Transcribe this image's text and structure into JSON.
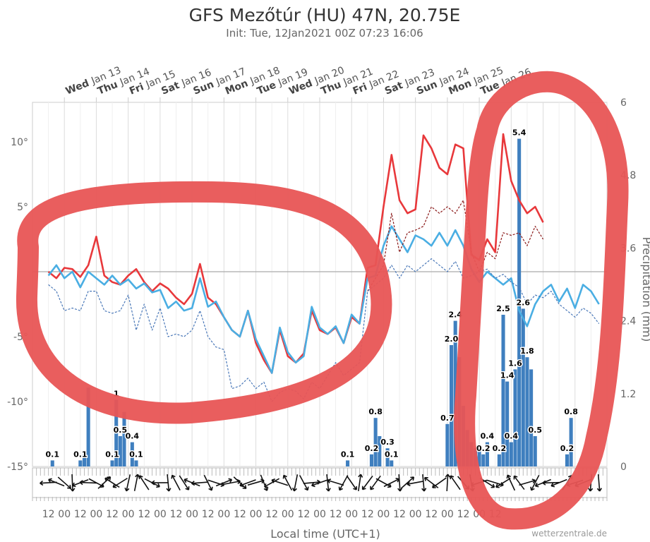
{
  "chart_data": {
    "type": "line+bar",
    "title": "GFS Mezőtúr (HU) 47N, 20.75E",
    "subtitle": "Init: Tue, 12Jan2021 00Z 07:23 16:06",
    "xlabel": "Local time (UTC+1)",
    "y_left": {
      "ticks": [
        "10°",
        "5°",
        "0°",
        "-5°",
        "-10°",
        "-15°"
      ],
      "range": [
        -15,
        13
      ]
    },
    "y_right": {
      "label": "Precipitation (mm)",
      "ticks": [
        "6",
        "4.8",
        "3.6",
        "2.4",
        "1.2",
        "0"
      ],
      "range": [
        0,
        6
      ]
    },
    "days": [
      {
        "name": "Wed",
        "date": "Jan 13"
      },
      {
        "name": "Thu",
        "date": "Jan 14"
      },
      {
        "name": "Fri",
        "date": "Jan 15"
      },
      {
        "name": "Sat",
        "date": "Jan 16"
      },
      {
        "name": "Sun",
        "date": "Jan 17"
      },
      {
        "name": "Mon",
        "date": "Jan 18"
      },
      {
        "name": "Tue",
        "date": "Jan 19"
      },
      {
        "name": "Wed",
        "date": "Jan 20"
      },
      {
        "name": "Thu",
        "date": "Jan 21"
      },
      {
        "name": "Fri",
        "date": "Jan 22"
      },
      {
        "name": "Sat",
        "date": "Jan 23"
      },
      {
        "name": "Sun",
        "date": "Jan 24"
      },
      {
        "name": "Mon",
        "date": "Jan 25"
      },
      {
        "name": "Tue",
        "date": "Jan 26"
      }
    ],
    "x_tick_labels": [
      "12",
      "00",
      "12",
      "00",
      "12",
      "00",
      "12",
      "00",
      "12",
      "00",
      "12",
      "00",
      "12",
      "00",
      "12",
      "00",
      "12",
      "00",
      "12",
      "00",
      "12",
      "00",
      "12",
      "00",
      "12",
      "00",
      "12",
      "00",
      "12"
    ],
    "x_hours": [
      0,
      372
    ],
    "series": [
      {
        "color": "#e8383b",
        "style": "solid",
        "points": [
          [
            0,
            0
          ],
          [
            6,
            -0.5
          ],
          [
            12,
            0.3
          ],
          [
            18,
            0.2
          ],
          [
            24,
            -0.4
          ],
          [
            30,
            0.5
          ],
          [
            36,
            2.7
          ],
          [
            42,
            -0.3
          ],
          [
            48,
            -0.8
          ],
          [
            54,
            -1.0
          ],
          [
            60,
            -0.3
          ],
          [
            66,
            0.2
          ],
          [
            72,
            -0.8
          ],
          [
            78,
            -1.5
          ],
          [
            84,
            -0.9
          ],
          [
            90,
            -1.3
          ],
          [
            96,
            -2.0
          ],
          [
            102,
            -2.5
          ],
          [
            108,
            -1.7
          ],
          [
            114,
            0.6
          ],
          [
            120,
            -2.0
          ],
          [
            126,
            -2.5
          ],
          [
            132,
            -3.5
          ],
          [
            138,
            -4.5
          ],
          [
            144,
            -5.0
          ],
          [
            150,
            -3.0
          ],
          [
            156,
            -5.5
          ],
          [
            162,
            -6.8
          ],
          [
            168,
            -7.8
          ],
          [
            174,
            -4.5
          ],
          [
            180,
            -6.5
          ],
          [
            186,
            -7.0
          ],
          [
            192,
            -6.3
          ],
          [
            198,
            -3.0
          ],
          [
            204,
            -4.5
          ],
          [
            210,
            -4.8
          ],
          [
            216,
            -4.3
          ],
          [
            222,
            -5.5
          ],
          [
            228,
            -3.5
          ],
          [
            234,
            -4.0
          ],
          [
            240,
            0.3
          ],
          [
            246,
            0.5
          ],
          [
            252,
            5.0
          ],
          [
            258,
            9.0
          ],
          [
            264,
            5.5
          ],
          [
            270,
            4.5
          ],
          [
            276,
            4.8
          ],
          [
            282,
            10.5
          ],
          [
            288,
            9.5
          ],
          [
            294,
            8.0
          ],
          [
            300,
            7.5
          ],
          [
            306,
            9.8
          ],
          [
            312,
            9.5
          ],
          [
            318,
            1.3
          ],
          [
            324,
            0.9
          ],
          [
            330,
            2.5
          ],
          [
            336,
            1.5
          ],
          [
            342,
            10.6
          ],
          [
            348,
            7.0
          ],
          [
            354,
            5.5
          ],
          [
            360,
            4.5
          ],
          [
            366,
            5.0
          ],
          [
            372,
            3.8
          ]
        ]
      },
      {
        "color": "#4aaee3",
        "style": "solid",
        "points": [
          [
            0,
            -0.3
          ],
          [
            6,
            0.5
          ],
          [
            12,
            -0.5
          ],
          [
            18,
            0.0
          ],
          [
            24,
            -1.2
          ],
          [
            30,
            0.0
          ],
          [
            36,
            -0.5
          ],
          [
            42,
            -1.0
          ],
          [
            48,
            -0.3
          ],
          [
            54,
            -1.0
          ],
          [
            60,
            -0.6
          ],
          [
            66,
            -1.3
          ],
          [
            72,
            -0.9
          ],
          [
            78,
            -1.6
          ],
          [
            84,
            -1.4
          ],
          [
            90,
            -2.8
          ],
          [
            96,
            -2.3
          ],
          [
            102,
            -3.0
          ],
          [
            108,
            -2.8
          ],
          [
            114,
            -0.5
          ],
          [
            120,
            -2.7
          ],
          [
            126,
            -2.3
          ],
          [
            132,
            -3.5
          ],
          [
            138,
            -4.5
          ],
          [
            144,
            -5.0
          ],
          [
            150,
            -3.0
          ],
          [
            156,
            -5.2
          ],
          [
            162,
            -6.5
          ],
          [
            168,
            -7.8
          ],
          [
            174,
            -4.3
          ],
          [
            180,
            -6.2
          ],
          [
            186,
            -7.0
          ],
          [
            192,
            -6.5
          ],
          [
            198,
            -2.7
          ],
          [
            204,
            -4.3
          ],
          [
            210,
            -4.8
          ],
          [
            216,
            -4.2
          ],
          [
            222,
            -5.5
          ],
          [
            228,
            -3.3
          ],
          [
            234,
            -4.0
          ],
          [
            240,
            -0.5
          ],
          [
            246,
            -0.3
          ],
          [
            252,
            2.0
          ],
          [
            258,
            3.5
          ],
          [
            264,
            2.5
          ],
          [
            270,
            1.5
          ],
          [
            276,
            2.8
          ],
          [
            282,
            2.5
          ],
          [
            288,
            2.0
          ],
          [
            294,
            3.0
          ],
          [
            300,
            2.0
          ],
          [
            306,
            3.2
          ],
          [
            312,
            2.0
          ],
          [
            318,
            0.2
          ],
          [
            324,
            -0.8
          ],
          [
            330,
            0.0
          ],
          [
            336,
            -0.5
          ],
          [
            342,
            -1.0
          ],
          [
            348,
            -0.5
          ],
          [
            354,
            -3.0
          ],
          [
            360,
            -4.2
          ],
          [
            366,
            -2.5
          ],
          [
            372,
            -1.5
          ],
          [
            378,
            -1.0
          ],
          [
            384,
            -2.3
          ],
          [
            390,
            -1.3
          ],
          [
            396,
            -2.8
          ],
          [
            402,
            -1.0
          ],
          [
            408,
            -1.5
          ],
          [
            414,
            -2.5
          ]
        ]
      },
      {
        "color": "#8b1a1a",
        "style": "dashed",
        "points": [
          [
            240,
            -1.5
          ],
          [
            246,
            -0.5
          ],
          [
            252,
            0.5
          ],
          [
            258,
            4.5
          ],
          [
            264,
            1.5
          ],
          [
            270,
            3.0
          ],
          [
            276,
            3.2
          ],
          [
            282,
            3.5
          ],
          [
            288,
            5.0
          ],
          [
            294,
            4.5
          ],
          [
            300,
            5.0
          ],
          [
            306,
            4.5
          ],
          [
            312,
            5.5
          ],
          [
            318,
            1.5
          ],
          [
            324,
            0.0
          ],
          [
            330,
            1.5
          ],
          [
            336,
            1.0
          ],
          [
            342,
            3.0
          ],
          [
            348,
            2.8
          ],
          [
            354,
            3.0
          ],
          [
            360,
            2.0
          ],
          [
            366,
            3.5
          ],
          [
            372,
            2.5
          ]
        ]
      },
      {
        "color": "#4a78b8",
        "style": "dashed",
        "points": [
          [
            0,
            -1.0
          ],
          [
            6,
            -1.5
          ],
          [
            12,
            -3.0
          ],
          [
            18,
            -2.8
          ],
          [
            24,
            -3.0
          ],
          [
            30,
            -1.5
          ],
          [
            36,
            -1.5
          ],
          [
            42,
            -3.0
          ],
          [
            48,
            -3.2
          ],
          [
            54,
            -3.0
          ],
          [
            60,
            -1.8
          ],
          [
            66,
            -4.5
          ],
          [
            72,
            -2.5
          ],
          [
            78,
            -4.5
          ],
          [
            84,
            -2.8
          ],
          [
            90,
            -5.0
          ],
          [
            96,
            -4.8
          ],
          [
            102,
            -5.0
          ],
          [
            108,
            -4.5
          ],
          [
            114,
            -3.0
          ],
          [
            120,
            -5.0
          ],
          [
            126,
            -5.8
          ],
          [
            132,
            -6.0
          ],
          [
            138,
            -9.0
          ],
          [
            144,
            -8.8
          ],
          [
            150,
            -8.2
          ],
          [
            156,
            -9.0
          ],
          [
            162,
            -8.5
          ],
          [
            168,
            -10.0
          ],
          [
            174,
            -9.3
          ],
          [
            180,
            -9.0
          ],
          [
            186,
            -9.2
          ],
          [
            192,
            -9.8
          ],
          [
            198,
            -8.5
          ],
          [
            204,
            -9.0
          ],
          [
            210,
            -8.0
          ],
          [
            216,
            -7.0
          ],
          [
            222,
            -8.0
          ],
          [
            228,
            -7.5
          ],
          [
            234,
            -7.0
          ],
          [
            240,
            -1.5
          ],
          [
            246,
            -1.0
          ],
          [
            252,
            -0.5
          ],
          [
            258,
            0.5
          ],
          [
            264,
            -0.5
          ],
          [
            270,
            0.5
          ],
          [
            276,
            0.0
          ],
          [
            282,
            0.5
          ],
          [
            288,
            1.0
          ],
          [
            294,
            0.5
          ],
          [
            300,
            0.0
          ],
          [
            306,
            0.8
          ],
          [
            312,
            -0.5
          ],
          [
            318,
            -0.3
          ],
          [
            324,
            0.0
          ],
          [
            330,
            0.2
          ],
          [
            336,
            -0.5
          ],
          [
            342,
            -0.2
          ],
          [
            348,
            -0.8
          ],
          [
            354,
            -1.2
          ],
          [
            360,
            -2.5
          ],
          [
            366,
            -1.8
          ],
          [
            372,
            -2.0
          ],
          [
            378,
            -1.5
          ],
          [
            384,
            -2.5
          ],
          [
            390,
            -3.0
          ],
          [
            396,
            -3.5
          ],
          [
            402,
            -2.8
          ],
          [
            408,
            -3.2
          ],
          [
            414,
            -4.0
          ]
        ]
      }
    ],
    "precipitation": [
      {
        "h": 3,
        "v": 0.1,
        "label": "0.1"
      },
      {
        "h": 6,
        "v": 0
      },
      {
        "h": 9,
        "v": 0
      },
      {
        "h": 12,
        "v": 0
      },
      {
        "h": 15,
        "v": 0
      },
      {
        "h": 18,
        "v": 0
      },
      {
        "h": 21,
        "v": 0
      },
      {
        "h": 24,
        "v": 0.1,
        "label": "0.1"
      },
      {
        "h": 27,
        "v": 0.2
      },
      {
        "h": 30,
        "v": 1.3
      },
      {
        "h": 33,
        "v": 0
      },
      {
        "h": 36,
        "v": 0
      },
      {
        "h": 39,
        "v": 0
      },
      {
        "h": 42,
        "v": 0
      },
      {
        "h": 45,
        "v": 0
      },
      {
        "h": 48,
        "v": 0.1,
        "label": "0.1"
      },
      {
        "h": 51,
        "v": 1.1,
        "label": "1"
      },
      {
        "h": 54,
        "v": 0.5,
        "label": "0.5"
      },
      {
        "h": 57,
        "v": 0.9
      },
      {
        "h": 60,
        "v": 0
      },
      {
        "h": 63,
        "v": 0.4,
        "label": "0.4"
      },
      {
        "h": 66,
        "v": 0.1,
        "label": "0.1"
      },
      {
        "h": 69,
        "v": 0
      },
      {
        "h": 225,
        "v": 0.1,
        "label": "0.1"
      },
      {
        "h": 243,
        "v": 0.2,
        "label": "0.2"
      },
      {
        "h": 246,
        "v": 0.8,
        "label": "0.8"
      },
      {
        "h": 249,
        "v": 0.5
      },
      {
        "h": 252,
        "v": 0
      },
      {
        "h": 255,
        "v": 0.3,
        "label": "0.3"
      },
      {
        "h": 258,
        "v": 0.1,
        "label": "0.1"
      },
      {
        "h": 300,
        "v": 0.7,
        "label": "0.7"
      },
      {
        "h": 303,
        "v": 2.0,
        "label": "2.0"
      },
      {
        "h": 306,
        "v": 2.4,
        "label": "2.4"
      },
      {
        "h": 309,
        "v": 1.8
      },
      {
        "h": 312,
        "v": 1.0
      },
      {
        "h": 315,
        "v": 0.6
      },
      {
        "h": 318,
        "v": 0.4
      },
      {
        "h": 321,
        "v": 0.3
      },
      {
        "h": 324,
        "v": 0.3
      },
      {
        "h": 327,
        "v": 0.2,
        "label": "0.2"
      },
      {
        "h": 330,
        "v": 0.4,
        "label": "0.4"
      },
      {
        "h": 333,
        "v": 0
      },
      {
        "h": 336,
        "v": 0
      },
      {
        "h": 339,
        "v": 0.2,
        "label": "0.2"
      },
      {
        "h": 342,
        "v": 2.5,
        "label": "2.5"
      },
      {
        "h": 345,
        "v": 1.4,
        "label": "1.4"
      },
      {
        "h": 348,
        "v": 0.4,
        "label": "0.4"
      },
      {
        "h": 351,
        "v": 1.6,
        "label": "1.6"
      },
      {
        "h": 354,
        "v": 5.4,
        "label": "5.4"
      },
      {
        "h": 357,
        "v": 2.6,
        "label": "2.6"
      },
      {
        "h": 360,
        "v": 1.8,
        "label": "1.8"
      },
      {
        "h": 363,
        "v": 1.6
      },
      {
        "h": 366,
        "v": 0.5,
        "label": "0.5"
      },
      {
        "h": 369,
        "v": 0
      },
      {
        "h": 390,
        "v": 0.2,
        "label": "0.2"
      },
      {
        "h": 393,
        "v": 0.8,
        "label": "0.8"
      },
      {
        "h": 396,
        "v": 0
      }
    ],
    "credits": "wetterzentrale.de"
  }
}
